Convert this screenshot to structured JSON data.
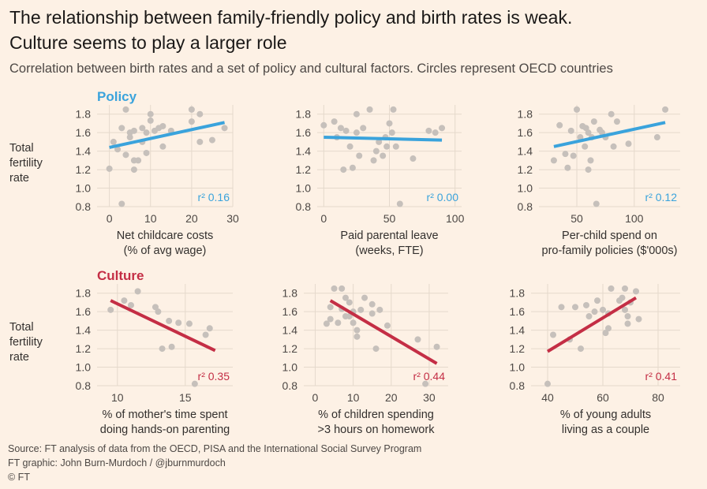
{
  "header": {
    "title_line1": "The relationship between family-friendly policy and birth rates is weak.",
    "title_line2": "Culture seems to play a larger role",
    "subtitle": "Correlation between birth rates and a set of policy and cultural factors. Circles represent OECD countries"
  },
  "footer": {
    "source": "Source: FT analysis of data from the OECD, PISA and the International Social Survey Program",
    "credit": "FT graphic: John Burn-Murdoch / @jburnmurdoch",
    "copyright": "© FT"
  },
  "colors": {
    "policy": "#3aa3dc",
    "culture": "#c42e45",
    "dot": "#c6c0bb",
    "grid": "#e5d9cc",
    "background": "#fdf1e5"
  },
  "row_labels": {
    "policy": "Policy",
    "culture": "Culture",
    "y_axis_label": [
      "Total",
      "fertility",
      "rate"
    ]
  },
  "chart_data": [
    {
      "type": "scatter",
      "group": "policy",
      "xlabel": [
        "Net childcare costs",
        "(% of avg wage)"
      ],
      "ylabel": "Total fertility rate",
      "xlim": [
        -3,
        30
      ],
      "ylim": [
        0.8,
        1.9
      ],
      "xticks": [
        0,
        10,
        20,
        30
      ],
      "yticks": [
        0.8,
        1.0,
        1.2,
        1.4,
        1.6,
        1.8
      ],
      "r2": "r² 0.16",
      "trend": [
        [
          0,
          1.44
        ],
        [
          28,
          1.71
        ]
      ],
      "points": [
        [
          0,
          1.21
        ],
        [
          1,
          1.5
        ],
        [
          2,
          1.42
        ],
        [
          3,
          0.83
        ],
        [
          3,
          1.65
        ],
        [
          4,
          1.85
        ],
        [
          4,
          1.36
        ],
        [
          5,
          1.55
        ],
        [
          5,
          1.6
        ],
        [
          6,
          1.3
        ],
        [
          6,
          1.2
        ],
        [
          6,
          1.62
        ],
        [
          7,
          1.3
        ],
        [
          8,
          1.65
        ],
        [
          8,
          1.5
        ],
        [
          9,
          1.38
        ],
        [
          9,
          1.6
        ],
        [
          10,
          1.8
        ],
        [
          10,
          1.73
        ],
        [
          11,
          1.62
        ],
        [
          12,
          1.65
        ],
        [
          13,
          1.67
        ],
        [
          13,
          1.45
        ],
        [
          15,
          1.62
        ],
        [
          20,
          1.72
        ],
        [
          20,
          1.85
        ],
        [
          22,
          1.5
        ],
        [
          22,
          1.8
        ],
        [
          25,
          1.52
        ],
        [
          28,
          1.65
        ]
      ]
    },
    {
      "type": "scatter",
      "group": "policy",
      "xlabel": [
        "Paid parental leave",
        "(weeks, FTE)"
      ],
      "ylabel": "Total fertility rate",
      "xlim": [
        -5,
        105
      ],
      "ylim": [
        0.8,
        1.9
      ],
      "xticks": [
        0,
        50,
        100
      ],
      "yticks": [
        0.8,
        1.0,
        1.2,
        1.4,
        1.6,
        1.8
      ],
      "r2": "r² 0.00",
      "trend": [
        [
          0,
          1.55
        ],
        [
          90,
          1.52
        ]
      ],
      "points": [
        [
          0,
          1.68
        ],
        [
          8,
          1.72
        ],
        [
          10,
          1.55
        ],
        [
          13,
          1.65
        ],
        [
          15,
          1.2
        ],
        [
          17,
          1.62
        ],
        [
          20,
          1.45
        ],
        [
          22,
          1.22
        ],
        [
          25,
          1.8
        ],
        [
          25,
          1.6
        ],
        [
          27,
          1.35
        ],
        [
          30,
          1.65
        ],
        [
          35,
          1.85
        ],
        [
          38,
          1.3
        ],
        [
          40,
          1.4
        ],
        [
          42,
          1.5
        ],
        [
          45,
          1.35
        ],
        [
          47,
          1.55
        ],
        [
          48,
          1.45
        ],
        [
          50,
          1.7
        ],
        [
          52,
          1.6
        ],
        [
          53,
          1.85
        ],
        [
          55,
          1.45
        ],
        [
          58,
          0.83
        ],
        [
          68,
          1.32
        ],
        [
          80,
          1.62
        ],
        [
          85,
          1.6
        ],
        [
          90,
          1.65
        ]
      ]
    },
    {
      "type": "scatter",
      "group": "policy",
      "xlabel": [
        "Per-child spend on",
        "pro-family policies ($'000s)"
      ],
      "ylabel": "Total fertility rate",
      "xlim": [
        17,
        140
      ],
      "ylim": [
        0.8,
        1.9
      ],
      "xticks": [
        50,
        100
      ],
      "yticks": [
        0.8,
        1.0,
        1.2,
        1.4,
        1.6,
        1.8
      ],
      "r2": "r² 0.12",
      "trend": [
        [
          30,
          1.45
        ],
        [
          127,
          1.71
        ]
      ],
      "points": [
        [
          30,
          1.3
        ],
        [
          35,
          1.68
        ],
        [
          40,
          1.37
        ],
        [
          42,
          1.22
        ],
        [
          45,
          1.62
        ],
        [
          47,
          1.35
        ],
        [
          50,
          1.85
        ],
        [
          53,
          1.55
        ],
        [
          55,
          1.67
        ],
        [
          57,
          1.45
        ],
        [
          58,
          1.65
        ],
        [
          60,
          1.6
        ],
        [
          60,
          1.2
        ],
        [
          62,
          1.3
        ],
        [
          63,
          1.55
        ],
        [
          65,
          1.72
        ],
        [
          67,
          0.83
        ],
        [
          70,
          1.63
        ],
        [
          72,
          1.6
        ],
        [
          75,
          1.55
        ],
        [
          80,
          1.8
        ],
        [
          82,
          1.45
        ],
        [
          85,
          1.72
        ],
        [
          95,
          1.48
        ],
        [
          120,
          1.55
        ],
        [
          127,
          1.85
        ]
      ]
    },
    {
      "type": "scatter",
      "group": "culture",
      "xlabel": [
        "% of mother's time spent",
        "doing hands-on parenting"
      ],
      "ylabel": "Total fertility rate",
      "xlim": [
        8.5,
        18.5
      ],
      "ylim": [
        0.8,
        1.9
      ],
      "xticks": [
        10,
        15
      ],
      "yticks": [
        0.8,
        1.0,
        1.2,
        1.4,
        1.6,
        1.8
      ],
      "r2": "r² 0.35",
      "trend": [
        [
          9.5,
          1.72
        ],
        [
          17.2,
          1.18
        ]
      ],
      "points": [
        [
          9.5,
          1.62
        ],
        [
          10.5,
          1.72
        ],
        [
          11,
          1.67
        ],
        [
          11.5,
          1.82
        ],
        [
          12.8,
          1.65
        ],
        [
          13,
          1.6
        ],
        [
          13.3,
          1.2
        ],
        [
          13.8,
          1.5
        ],
        [
          14,
          1.22
        ],
        [
          14.5,
          1.48
        ],
        [
          15.3,
          1.47
        ],
        [
          15.7,
          0.82
        ],
        [
          16.5,
          1.35
        ],
        [
          16.8,
          1.42
        ]
      ]
    },
    {
      "type": "scatter",
      "group": "culture",
      "xlabel": [
        "% of children spending",
        ">3 hours on homework"
      ],
      "ylabel": "Total fertility rate",
      "xlim": [
        -3,
        35
      ],
      "ylim": [
        0.8,
        1.9
      ],
      "xticks": [
        0,
        10,
        20,
        30
      ],
      "yticks": [
        0.8,
        1.0,
        1.2,
        1.4,
        1.6,
        1.8
      ],
      "r2": "r² 0.44",
      "trend": [
        [
          4,
          1.72
        ],
        [
          32,
          1.04
        ]
      ],
      "points": [
        [
          3,
          1.47
        ],
        [
          4,
          1.65
        ],
        [
          4,
          1.52
        ],
        [
          5,
          1.85
        ],
        [
          6,
          1.48
        ],
        [
          7,
          1.85
        ],
        [
          7,
          1.63
        ],
        [
          8,
          1.75
        ],
        [
          8,
          1.55
        ],
        [
          9,
          1.55
        ],
        [
          9,
          1.7
        ],
        [
          10,
          1.6
        ],
        [
          10,
          1.48
        ],
        [
          11,
          1.33
        ],
        [
          11,
          1.4
        ],
        [
          12,
          1.62
        ],
        [
          13,
          1.75
        ],
        [
          15,
          1.68
        ],
        [
          15,
          1.58
        ],
        [
          16,
          1.2
        ],
        [
          17,
          1.62
        ],
        [
          19,
          1.45
        ],
        [
          27,
          1.3
        ],
        [
          29,
          0.82
        ],
        [
          32,
          1.22
        ]
      ]
    },
    {
      "type": "scatter",
      "group": "culture",
      "xlabel": [
        "% of young adults",
        "living as a couple"
      ],
      "ylabel": "Total fertility rate",
      "xlim": [
        34,
        88
      ],
      "ylim": [
        0.8,
        1.9
      ],
      "xticks": [
        40,
        60,
        80
      ],
      "yticks": [
        0.8,
        1.0,
        1.2,
        1.4,
        1.6,
        1.8
      ],
      "r2": "r² 0.41",
      "trend": [
        [
          40,
          1.17
        ],
        [
          72,
          1.75
        ]
      ],
      "points": [
        [
          40,
          0.82
        ],
        [
          42,
          1.35
        ],
        [
          45,
          1.65
        ],
        [
          48,
          1.3
        ],
        [
          50,
          1.65
        ],
        [
          52,
          1.2
        ],
        [
          54,
          1.67
        ],
        [
          55,
          1.55
        ],
        [
          57,
          1.6
        ],
        [
          58,
          1.72
        ],
        [
          60,
          1.62
        ],
        [
          61,
          1.37
        ],
        [
          62,
          1.42
        ],
        [
          62,
          1.58
        ],
        [
          63,
          1.85
        ],
        [
          66,
          1.72
        ],
        [
          67,
          1.75
        ],
        [
          68,
          1.85
        ],
        [
          68,
          1.62
        ],
        [
          69,
          1.55
        ],
        [
          69,
          1.47
        ],
        [
          70,
          1.7
        ],
        [
          72,
          1.82
        ],
        [
          73,
          1.52
        ]
      ]
    }
  ]
}
